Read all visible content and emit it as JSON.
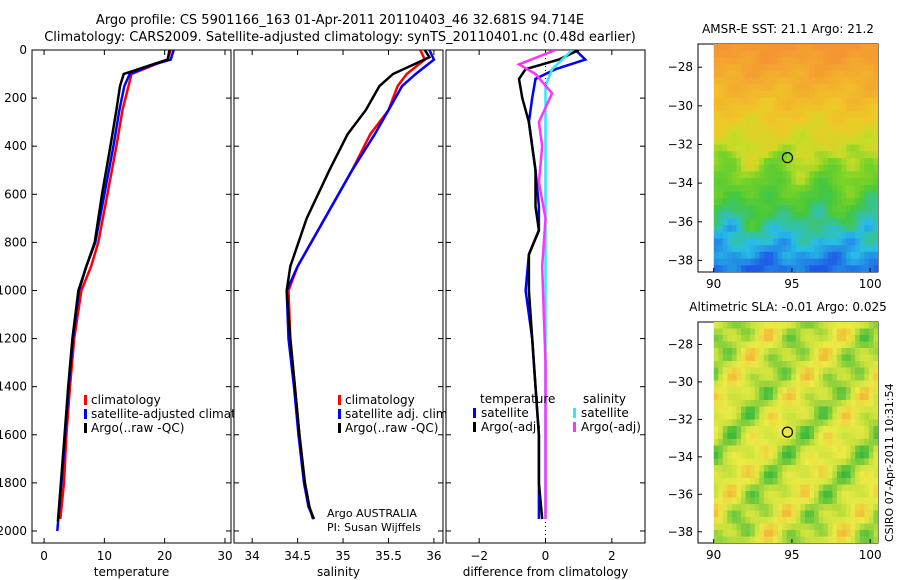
{
  "header": {
    "title": "Argo profile: CS 5901166_163 01-Apr-2011 20110403_46 32.681S 94.714E",
    "subtitle": "Climatology: CARS2009. Satellite-adjusted climatology: synTS_20110401.nc (0.48d earlier)"
  },
  "stamp": "CSIRO 07-Apr-2011 10:31:54",
  "colors": {
    "climatology": "#ff0000",
    "satellite": "#0000ff",
    "argo": "#000000",
    "satellite_sal": "#33e6ff",
    "argo_sal": "#ff33ff"
  },
  "chart_data": [
    {
      "type": "line",
      "panel": "temperature",
      "xlabel": "temperature",
      "xlim": [
        -2,
        31
      ],
      "ylim": [
        2050,
        0
      ],
      "xticks": [
        0,
        10,
        20,
        30
      ],
      "yticks": [
        0,
        200,
        400,
        600,
        800,
        1000,
        1200,
        1400,
        1600,
        1800,
        2000
      ],
      "y_inverted": true,
      "legend": [
        "climatology",
        "satellite-adjusted climatolog",
        "Argo(..raw -QC)"
      ],
      "legend_position": "lower-right",
      "series": [
        {
          "name": "climatology",
          "color": "#ff0000",
          "x": [
            21.0,
            20.5,
            18.5,
            14.5,
            14.0,
            13.0,
            12.0,
            10.5,
            9.0,
            7.8,
            6.2,
            5.0,
            4.3,
            3.7,
            3.3,
            2.7
          ],
          "y": [
            0,
            40,
            60,
            100,
            150,
            250,
            400,
            600,
            800,
            900,
            1000,
            1200,
            1400,
            1600,
            1800,
            1950
          ]
        },
        {
          "name": "satellite-adjusted climatolog",
          "color": "#0000ff",
          "x": [
            21.5,
            21.0,
            18.2,
            14.2,
            13.3,
            12.5,
            11.5,
            10.0,
            8.5,
            7.0,
            5.8,
            4.8,
            4.1,
            3.5,
            2.9,
            2.2
          ],
          "y": [
            0,
            40,
            60,
            100,
            150,
            250,
            400,
            600,
            800,
            900,
            1000,
            1200,
            1400,
            1600,
            1800,
            2000
          ]
        },
        {
          "name": "Argo(..raw -QC)",
          "color": "#000000",
          "x": [
            20.8,
            20.5,
            18.0,
            13.2,
            12.6,
            12.0,
            11.0,
            9.6,
            8.4,
            7.0,
            5.7,
            4.7,
            4.0,
            3.4,
            2.8,
            2.3
          ],
          "y": [
            0,
            40,
            60,
            100,
            150,
            250,
            400,
            600,
            800,
            900,
            1000,
            1200,
            1400,
            1600,
            1800,
            1960
          ]
        }
      ]
    },
    {
      "type": "line",
      "panel": "salinity",
      "xlabel": "salinity",
      "xlim": [
        33.8,
        36.1
      ],
      "ylim": [
        2050,
        0
      ],
      "xticks": [
        34,
        34.5,
        35,
        35.5,
        36
      ],
      "xtick_labels": [
        "34",
        "34.5",
        "35",
        "35.5",
        "36"
      ],
      "legend": [
        "climatology",
        "satellite adj. clim.",
        "Argo(..raw -QC)"
      ],
      "legend_position": "lower-right",
      "annotations": [
        "Argo AUSTRALIA",
        "PI: Susan Wijffels"
      ],
      "series": [
        {
          "name": "climatology",
          "color": "#ff0000",
          "x": [
            35.85,
            35.9,
            35.7,
            35.6,
            35.5,
            35.3,
            35.1,
            34.8,
            34.5,
            34.4,
            34.42,
            34.47,
            34.52,
            34.58,
            34.63,
            34.68
          ],
          "y": [
            0,
            40,
            100,
            150,
            250,
            350,
            500,
            700,
            900,
            1000,
            1200,
            1400,
            1600,
            1800,
            1900,
            1950
          ]
        },
        {
          "name": "satellite adj. clim.",
          "color": "#0000ff",
          "x": [
            35.95,
            36.0,
            35.8,
            35.65,
            35.5,
            35.35,
            35.1,
            34.8,
            34.5,
            34.38,
            34.4,
            34.46,
            34.51,
            34.57,
            34.62,
            34.68
          ],
          "y": [
            0,
            40,
            100,
            150,
            250,
            350,
            500,
            700,
            900,
            1000,
            1200,
            1400,
            1600,
            1800,
            1900,
            1950
          ]
        },
        {
          "name": "Argo(..raw -QC)",
          "color": "#000000",
          "x": [
            35.9,
            35.95,
            35.55,
            35.4,
            35.25,
            35.05,
            34.85,
            34.6,
            34.42,
            34.38,
            34.42,
            34.47,
            34.52,
            34.58,
            34.63,
            34.67
          ],
          "y": [
            0,
            30,
            100,
            150,
            250,
            350,
            500,
            700,
            900,
            1000,
            1200,
            1400,
            1600,
            1800,
            1900,
            1950
          ]
        }
      ]
    },
    {
      "type": "line",
      "panel": "difference",
      "xlabel": "difference from climatology",
      "xlim": [
        -3,
        3
      ],
      "ylim": [
        2050,
        0
      ],
      "xticks": [
        -2,
        0,
        2
      ],
      "xtick_labels": [
        "−2",
        "0",
        "2"
      ],
      "legend": [
        "temperature",
        "satellite",
        "Argo(-adj)",
        "salinity",
        "satellite",
        "Argo(-adj)"
      ],
      "legend_position": "lower-center",
      "series": [
        {
          "name": "temperature satellite",
          "color": "#0000ff",
          "x": [
            0.9,
            1.2,
            0.3,
            -0.3,
            -0.4,
            -0.5,
            -0.3,
            -0.2,
            -0.2,
            -0.5,
            -0.6,
            -0.4,
            -0.3,
            -0.2,
            -0.2,
            -0.2
          ],
          "y": [
            0,
            40,
            80,
            120,
            200,
            300,
            500,
            650,
            750,
            850,
            1000,
            1200,
            1400,
            1600,
            1800,
            1950
          ]
        },
        {
          "name": "temperature Argo(-adj)",
          "color": "#000000",
          "x": [
            1.0,
            0.4,
            -0.6,
            -0.8,
            -0.7,
            -0.5,
            -0.3,
            -0.3,
            -0.2,
            -0.5,
            -0.5,
            -0.4,
            -0.3,
            -0.2,
            -0.2,
            -0.1
          ],
          "y": [
            0,
            40,
            80,
            120,
            200,
            300,
            500,
            650,
            750,
            850,
            1000,
            1200,
            1400,
            1600,
            1800,
            1950
          ]
        },
        {
          "name": "salinity satellite",
          "color": "#33e6ff",
          "x": [
            0.8,
            0.5,
            0.2,
            0.0,
            0.0,
            0.0,
            0.0,
            0.0,
            0.0,
            0.0,
            0.0,
            0.0,
            0.0,
            0.0
          ],
          "y": [
            0,
            40,
            80,
            150,
            250,
            400,
            600,
            800,
            1000,
            1200,
            1400,
            1600,
            1800,
            1950
          ]
        },
        {
          "name": "salinity Argo(-adj)",
          "color": "#ff33ff",
          "x": [
            0.3,
            -0.8,
            -0.3,
            0.2,
            -0.2,
            -0.1,
            -0.2,
            0.0,
            -0.1,
            -0.05,
            0.0,
            0.0,
            0.0,
            0.0
          ],
          "y": [
            0,
            60,
            100,
            180,
            300,
            400,
            550,
            700,
            900,
            1100,
            1300,
            1500,
            1700,
            1950
          ]
        }
      ]
    },
    {
      "type": "heatmap",
      "panel": "sst-map",
      "title": "AMSR-E SST: 21.1 Argo: 21.2",
      "xlim": [
        89,
        100.5
      ],
      "ylim": [
        -38.6,
        -26.8
      ],
      "xticks": [
        90,
        95,
        100
      ],
      "yticks": [
        -28,
        -30,
        -32,
        -34,
        -36,
        -38
      ],
      "marker": {
        "lon": 94.714,
        "lat": -32.681
      }
    },
    {
      "type": "heatmap",
      "panel": "sla-map",
      "title": "Altimetric SLA: -0.01 Argo: 0.025",
      "xlim": [
        89,
        100.5
      ],
      "ylim": [
        -38.6,
        -26.8
      ],
      "xticks": [
        90,
        95,
        100
      ],
      "yticks": [
        -28,
        -30,
        -32,
        -34,
        -36,
        -38
      ],
      "marker": {
        "lon": 94.714,
        "lat": -32.681
      }
    }
  ]
}
